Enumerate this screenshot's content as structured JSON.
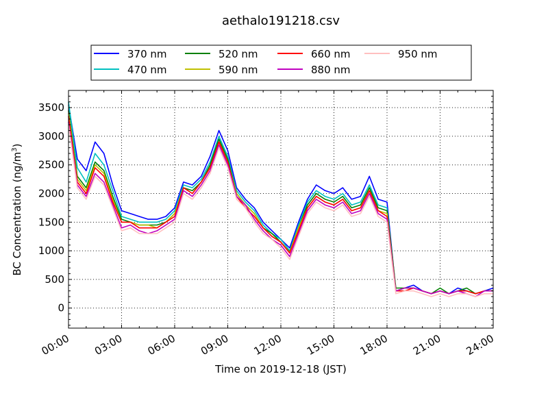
{
  "chart_data": {
    "type": "line",
    "title": "aethalo191218.csv",
    "xlabel": "Time on 2019-12-18 (JST)",
    "ylabel": "BC Concentration (ng/m³)",
    "ylabel_main": "BC Concentration (ng/m",
    "ylabel_sup": "3",
    "ylabel_end": ")",
    "xlim": [
      0,
      24
    ],
    "ylim": [
      -350,
      3800
    ],
    "x_ticks": [
      0,
      3,
      6,
      9,
      12,
      15,
      18,
      21,
      24
    ],
    "x_tick_labels": [
      "00:00",
      "03:00",
      "06:00",
      "09:00",
      "12:00",
      "15:00",
      "18:00",
      "21:00",
      "24:00"
    ],
    "y_ticks": [
      0,
      500,
      1000,
      1500,
      2000,
      2500,
      3000,
      3500
    ],
    "y_tick_labels": [
      "0",
      "500",
      "1000",
      "1500",
      "2000",
      "2500",
      "3000",
      "3500"
    ],
    "grid": true,
    "legend_position": "top",
    "x": [
      0,
      0.5,
      1,
      1.5,
      2,
      2.5,
      3,
      3.5,
      4,
      4.5,
      5,
      5.5,
      6,
      6.5,
      7,
      7.5,
      8,
      8.5,
      9,
      9.5,
      10,
      10.5,
      11,
      11.5,
      12,
      12.5,
      13,
      13.5,
      14,
      14.5,
      15,
      15.5,
      16,
      16.5,
      17,
      17.5,
      18,
      18.5,
      19,
      19.5,
      20,
      20.5,
      21,
      21.5,
      22,
      22.5,
      23,
      23.5,
      24
    ],
    "series": [
      {
        "name": "370 nm",
        "color": "#0000ff",
        "values": [
          3550,
          2600,
          2400,
          2900,
          2700,
          2150,
          1700,
          1650,
          1600,
          1550,
          1550,
          1600,
          1750,
          2200,
          2150,
          2300,
          2650,
          3100,
          2750,
          2100,
          1900,
          1750,
          1500,
          1350,
          1200,
          1050,
          1500,
          1900,
          2150,
          2050,
          2000,
          2100,
          1900,
          1950,
          2300,
          1900,
          1850,
          300,
          350,
          400,
          300,
          250,
          300,
          250,
          350,
          300,
          250,
          300,
          350
        ]
      },
      {
        "name": "470 nm",
        "color": "#00bfbf",
        "values": [
          3600,
          2450,
          2200,
          2700,
          2500,
          2050,
          1600,
          1550,
          1500,
          1500,
          1500,
          1550,
          1700,
          2150,
          2100,
          2250,
          2550,
          3000,
          2650,
          2050,
          1850,
          1700,
          1450,
          1300,
          1200,
          1000,
          1450,
          1850,
          2050,
          1950,
          1900,
          2000,
          1800,
          1850,
          2150,
          1800,
          1750,
          300,
          350,
          350,
          300,
          250,
          300,
          250,
          300,
          300,
          250,
          300,
          300
        ]
      },
      {
        "name": "520 nm",
        "color": "#008000",
        "values": [
          3450,
          2300,
          2100,
          2550,
          2400,
          1950,
          1550,
          1500,
          1450,
          1450,
          1450,
          1500,
          1650,
          2100,
          2050,
          2200,
          2500,
          2950,
          2600,
          2000,
          1800,
          1650,
          1400,
          1300,
          1150,
          980,
          1400,
          1800,
          2000,
          1900,
          1850,
          1950,
          1750,
          1800,
          2100,
          1750,
          1700,
          350,
          350,
          350,
          300,
          250,
          350,
          250,
          300,
          350,
          250,
          300,
          300
        ]
      },
      {
        "name": "590 nm",
        "color": "#bfbf00",
        "values": [
          3400,
          2250,
          2050,
          2500,
          2350,
          1900,
          1500,
          1500,
          1450,
          1450,
          1400,
          1500,
          1650,
          2100,
          2000,
          2200,
          2450,
          2900,
          2550,
          2000,
          1800,
          1650,
          1400,
          1250,
          1150,
          970,
          1400,
          1750,
          1950,
          1850,
          1800,
          1900,
          1700,
          1750,
          2050,
          1700,
          1650,
          300,
          350,
          350,
          300,
          250,
          300,
          250,
          300,
          300,
          250,
          300,
          300
        ]
      },
      {
        "name": "660 nm",
        "color": "#ff0000",
        "values": [
          3350,
          2200,
          2000,
          2450,
          2300,
          1850,
          1500,
          1500,
          1400,
          1400,
          1400,
          1500,
          1600,
          2100,
          2000,
          2200,
          2450,
          2900,
          2550,
          1950,
          1750,
          1600,
          1400,
          1250,
          1150,
          960,
          1350,
          1750,
          1950,
          1850,
          1800,
          1900,
          1700,
          1750,
          2050,
          1700,
          1600,
          300,
          300,
          350,
          300,
          250,
          300,
          250,
          300,
          300,
          250,
          300,
          300
        ]
      },
      {
        "name": "880 nm",
        "color": "#bf00bf",
        "values": [
          3250,
          2150,
          1950,
          2350,
          2200,
          1800,
          1400,
          1450,
          1350,
          1300,
          1350,
          1450,
          1550,
          2050,
          1950,
          2150,
          2400,
          2850,
          2500,
          1950,
          1800,
          1550,
          1350,
          1200,
          1100,
          900,
          1300,
          1700,
          1900,
          1800,
          1750,
          1850,
          1650,
          1700,
          2000,
          1650,
          1550,
          300,
          350,
          350,
          300,
          250,
          300,
          250,
          300,
          250,
          200,
          300,
          300
        ]
      },
      {
        "name": "950 nm",
        "color": "#ffbfbf",
        "values": [
          3200,
          2100,
          1900,
          2300,
          2150,
          1750,
          1350,
          1400,
          1300,
          1300,
          1300,
          1400,
          1500,
          2000,
          1900,
          2100,
          2350,
          2800,
          2450,
          1900,
          1750,
          1500,
          1300,
          1200,
          1050,
          850,
          1250,
          1650,
          1850,
          1750,
          1700,
          1800,
          1600,
          1650,
          1950,
          1600,
          1500,
          250,
          300,
          300,
          250,
          200,
          250,
          200,
          250,
          250,
          200,
          250,
          250
        ]
      }
    ]
  }
}
